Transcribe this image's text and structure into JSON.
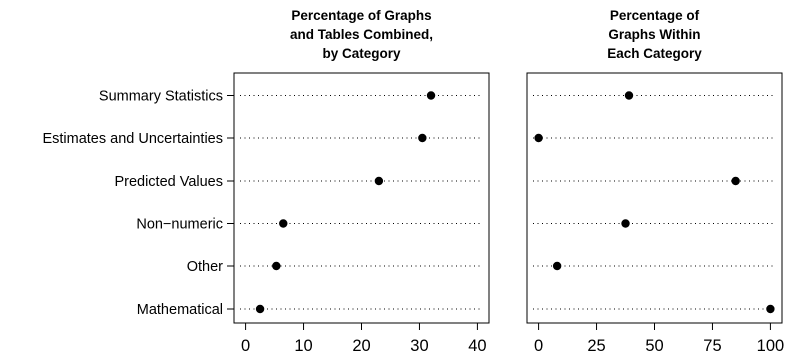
{
  "chart_data": {
    "type": "dot",
    "categories": [
      "Summary Statistics",
      "Estimates and Uncertainties",
      "Predicted Values",
      "Non−numeric",
      "Other",
      "Mathematical"
    ],
    "panels": [
      {
        "title": [
          "Percentage of Graphs",
          "and Tables Combined,",
          "by Category"
        ],
        "xlim": [
          -2,
          42
        ],
        "xticks": [
          0,
          10,
          20,
          30,
          40
        ],
        "tick_labels": [
          "0",
          "10",
          "20",
          "30",
          "40"
        ],
        "values": [
          32,
          30.5,
          23,
          6.5,
          5.3,
          2.5
        ]
      },
      {
        "title": [
          "Percentage of",
          "Graphs Within",
          "Each Category"
        ],
        "xlim": [
          -5,
          105
        ],
        "xticks": [
          0,
          25,
          50,
          75,
          100
        ],
        "tick_labels": [
          "0",
          "25",
          "50",
          "75",
          "100"
        ],
        "values": [
          39,
          0,
          85,
          37.5,
          8,
          100
        ]
      }
    ],
    "grid": "dotted horizontal guide lines",
    "marker": "filled black circle"
  }
}
